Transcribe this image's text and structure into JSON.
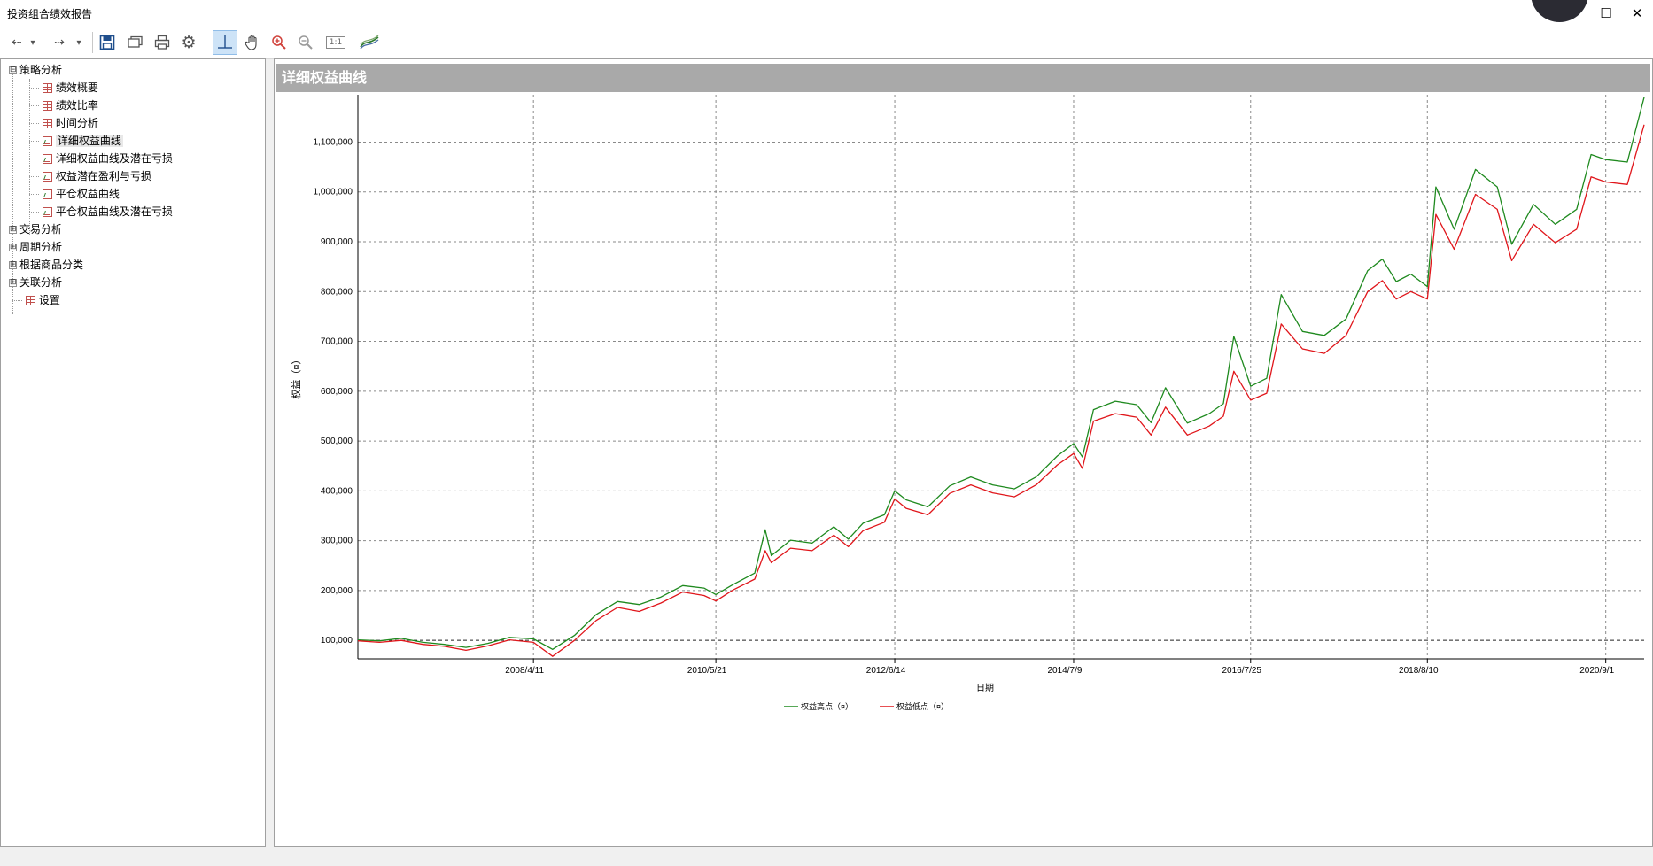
{
  "window": {
    "title": "投资组合绩效报告",
    "maximize_glyph": "☐",
    "close_glyph": "✕"
  },
  "toolbar": {
    "buttons": [
      {
        "name": "back-icon",
        "glyph": "⇠"
      },
      {
        "name": "back-dropdown-icon",
        "glyph": "▾"
      },
      {
        "name": "forward-icon",
        "glyph": "⇢"
      },
      {
        "name": "forward-dropdown-icon",
        "glyph": "▾"
      },
      {
        "name": "save-icon",
        "glyph": "💾"
      },
      {
        "name": "open-icon",
        "glyph": "▭"
      },
      {
        "name": "print-icon",
        "glyph": "⎙"
      },
      {
        "name": "settings-icon",
        "glyph": "⚙"
      },
      {
        "name": "crosshair-icon",
        "glyph": "┴"
      },
      {
        "name": "pan-hand-icon",
        "glyph": "✋"
      },
      {
        "name": "zoom-in-icon",
        "glyph": "⊕"
      },
      {
        "name": "zoom-out-icon",
        "glyph": "⊖"
      },
      {
        "name": "actual-size-icon",
        "glyph": "1:1"
      },
      {
        "name": "chart-style-icon",
        "glyph": "≋"
      }
    ]
  },
  "tree": {
    "root": {
      "label": "策略分析",
      "expander": "⊟"
    },
    "children": [
      {
        "label": "绩效概要",
        "icon": "table"
      },
      {
        "label": "绩效比率",
        "icon": "table"
      },
      {
        "label": "时间分析",
        "icon": "table"
      },
      {
        "label": "详细权益曲线",
        "icon": "chart"
      },
      {
        "label": "详细权益曲线及潜在亏损",
        "icon": "chart"
      },
      {
        "label": "权益潜在盈利与亏损",
        "icon": "chart"
      },
      {
        "label": "平仓权益曲线",
        "icon": "chart"
      },
      {
        "label": "平仓权益曲线及潜在亏损",
        "icon": "chart"
      }
    ],
    "groups": [
      {
        "label": "交易分析",
        "expander": "⊞"
      },
      {
        "label": "周期分析",
        "expander": "⊞"
      },
      {
        "label": "根据商品分类",
        "expander": "⊞"
      },
      {
        "label": "关联分析",
        "expander": "⊞"
      }
    ],
    "settings": {
      "label": "设置",
      "icon": "table"
    }
  },
  "panel": {
    "title": "详细权益曲线"
  },
  "colors": {
    "high": "#1f8a1f",
    "low": "#e0161b",
    "grid": "#8a8a8a",
    "header": "#a9a9a9"
  },
  "chart_data": {
    "type": "line",
    "ylabel": "权益（¤）",
    "xlabel": "日期",
    "ylim": [
      63000,
      1195000
    ],
    "yticks": [
      100000,
      200000,
      300000,
      400000,
      500000,
      600000,
      700000,
      800000,
      900000,
      1000000,
      1100000
    ],
    "ytick_labels": [
      "100,000",
      "200,000",
      "300,000",
      "400,000",
      "500,000",
      "600,000",
      "700,000",
      "800,000",
      "900,000",
      "1,000,000",
      "1,100,000"
    ],
    "xlim": [
      "2006-04-01",
      "2021-02-10"
    ],
    "xticks": [
      "2008-04-11",
      "2010-05-21",
      "2012-06-14",
      "2014-07-09",
      "2016-07-25",
      "2018-08-10",
      "2020-09-01"
    ],
    "xtick_labels": [
      "2008/4/11",
      "2010/5/21",
      "2012/6/14",
      "2014/7/9",
      "2016/7/25",
      "2018/8/10",
      "2020/9/1"
    ],
    "reference_line": 100000,
    "legend_position": "bottom",
    "series": [
      {
        "name": "权益高点（¤）",
        "color": "#1f8a1f",
        "points": [
          [
            "2006-04-01",
            101000
          ],
          [
            "2006-07-01",
            99000
          ],
          [
            "2006-10-01",
            104000
          ],
          [
            "2007-01-01",
            96000
          ],
          [
            "2007-04-01",
            92000
          ],
          [
            "2007-07-01",
            86000
          ],
          [
            "2007-10-01",
            94000
          ],
          [
            "2008-01-01",
            106000
          ],
          [
            "2008-04-11",
            103000
          ],
          [
            "2008-07-01",
            82000
          ],
          [
            "2008-10-01",
            110000
          ],
          [
            "2009-01-01",
            152000
          ],
          [
            "2009-04-01",
            178000
          ],
          [
            "2009-07-01",
            172000
          ],
          [
            "2009-10-01",
            187000
          ],
          [
            "2010-01-01",
            210000
          ],
          [
            "2010-04-01",
            205000
          ],
          [
            "2010-05-21",
            192000
          ],
          [
            "2010-08-01",
            212000
          ],
          [
            "2010-11-01",
            235000
          ],
          [
            "2010-12-15",
            322000
          ],
          [
            "2011-01-10",
            270000
          ],
          [
            "2011-04-01",
            301000
          ],
          [
            "2011-07-01",
            295000
          ],
          [
            "2011-10-01",
            328000
          ],
          [
            "2011-12-01",
            303000
          ],
          [
            "2012-02-01",
            335000
          ],
          [
            "2012-05-01",
            352000
          ],
          [
            "2012-06-14",
            400000
          ],
          [
            "2012-08-01",
            382000
          ],
          [
            "2012-11-01",
            368000
          ],
          [
            "2013-02-01",
            410000
          ],
          [
            "2013-05-01",
            428000
          ],
          [
            "2013-08-01",
            412000
          ],
          [
            "2013-11-01",
            404000
          ],
          [
            "2014-02-01",
            428000
          ],
          [
            "2014-05-01",
            470000
          ],
          [
            "2014-07-09",
            495000
          ],
          [
            "2014-08-15",
            468000
          ],
          [
            "2014-10-01",
            563000
          ],
          [
            "2015-01-01",
            580000
          ],
          [
            "2015-04-01",
            573000
          ],
          [
            "2015-06-01",
            537000
          ],
          [
            "2015-08-01",
            607000
          ],
          [
            "2015-11-01",
            536000
          ],
          [
            "2016-02-01",
            555000
          ],
          [
            "2016-04-01",
            575000
          ],
          [
            "2016-05-15",
            710000
          ],
          [
            "2016-07-25",
            610000
          ],
          [
            "2016-10-01",
            626000
          ],
          [
            "2016-12-01",
            794000
          ],
          [
            "2017-03-01",
            720000
          ],
          [
            "2017-06-01",
            712000
          ],
          [
            "2017-09-01",
            745000
          ],
          [
            "2017-12-01",
            842000
          ],
          [
            "2018-02-01",
            865000
          ],
          [
            "2018-04-01",
            820000
          ],
          [
            "2018-06-01",
            835000
          ],
          [
            "2018-08-10",
            810000
          ],
          [
            "2018-09-15",
            1010000
          ],
          [
            "2018-12-01",
            925000
          ],
          [
            "2019-03-01",
            1045000
          ],
          [
            "2019-06-01",
            1010000
          ],
          [
            "2019-08-01",
            895000
          ],
          [
            "2019-11-01",
            975000
          ],
          [
            "2020-02-01",
            935000
          ],
          [
            "2020-05-01",
            965000
          ],
          [
            "2020-07-01",
            1075000
          ],
          [
            "2020-09-01",
            1065000
          ],
          [
            "2020-12-01",
            1060000
          ],
          [
            "2021-02-10",
            1190000
          ]
        ]
      },
      {
        "name": "权益低点（¤）",
        "color": "#e0161b",
        "points": [
          [
            "2006-04-01",
            99000
          ],
          [
            "2006-07-01",
            96000
          ],
          [
            "2006-10-01",
            100000
          ],
          [
            "2007-01-01",
            92000
          ],
          [
            "2007-04-01",
            88000
          ],
          [
            "2007-07-01",
            80000
          ],
          [
            "2007-10-01",
            89000
          ],
          [
            "2008-01-01",
            101000
          ],
          [
            "2008-04-11",
            96000
          ],
          [
            "2008-07-01",
            68000
          ],
          [
            "2008-10-01",
            100000
          ],
          [
            "2009-01-01",
            140000
          ],
          [
            "2009-04-01",
            166000
          ],
          [
            "2009-07-01",
            158000
          ],
          [
            "2009-10-01",
            175000
          ],
          [
            "2010-01-01",
            197000
          ],
          [
            "2010-04-01",
            190000
          ],
          [
            "2010-05-21",
            179000
          ],
          [
            "2010-08-01",
            201000
          ],
          [
            "2010-11-01",
            223000
          ],
          [
            "2010-12-15",
            280000
          ],
          [
            "2011-01-10",
            256000
          ],
          [
            "2011-04-01",
            285000
          ],
          [
            "2011-07-01",
            280000
          ],
          [
            "2011-10-01",
            311000
          ],
          [
            "2011-12-01",
            288000
          ],
          [
            "2012-02-01",
            320000
          ],
          [
            "2012-05-01",
            337000
          ],
          [
            "2012-06-14",
            384000
          ],
          [
            "2012-08-01",
            365000
          ],
          [
            "2012-11-01",
            352000
          ],
          [
            "2013-02-01",
            395000
          ],
          [
            "2013-05-01",
            412000
          ],
          [
            "2013-08-01",
            396000
          ],
          [
            "2013-11-01",
            388000
          ],
          [
            "2014-02-01",
            412000
          ],
          [
            "2014-05-01",
            452000
          ],
          [
            "2014-07-09",
            475000
          ],
          [
            "2014-08-15",
            445000
          ],
          [
            "2014-10-01",
            540000
          ],
          [
            "2015-01-01",
            555000
          ],
          [
            "2015-04-01",
            548000
          ],
          [
            "2015-06-01",
            512000
          ],
          [
            "2015-08-01",
            568000
          ],
          [
            "2015-11-01",
            512000
          ],
          [
            "2016-02-01",
            530000
          ],
          [
            "2016-04-01",
            550000
          ],
          [
            "2016-05-15",
            640000
          ],
          [
            "2016-07-25",
            582000
          ],
          [
            "2016-10-01",
            596000
          ],
          [
            "2016-12-01",
            735000
          ],
          [
            "2017-03-01",
            685000
          ],
          [
            "2017-06-01",
            676000
          ],
          [
            "2017-09-01",
            712000
          ],
          [
            "2017-12-01",
            800000
          ],
          [
            "2018-02-01",
            822000
          ],
          [
            "2018-04-01",
            785000
          ],
          [
            "2018-06-01",
            800000
          ],
          [
            "2018-08-10",
            785000
          ],
          [
            "2018-09-15",
            955000
          ],
          [
            "2018-12-01",
            885000
          ],
          [
            "2019-03-01",
            995000
          ],
          [
            "2019-06-01",
            965000
          ],
          [
            "2019-08-01",
            862000
          ],
          [
            "2019-11-01",
            935000
          ],
          [
            "2020-02-01",
            898000
          ],
          [
            "2020-05-01",
            925000
          ],
          [
            "2020-07-01",
            1030000
          ],
          [
            "2020-09-01",
            1020000
          ],
          [
            "2020-12-01",
            1015000
          ],
          [
            "2021-02-10",
            1135000
          ]
        ]
      }
    ]
  }
}
